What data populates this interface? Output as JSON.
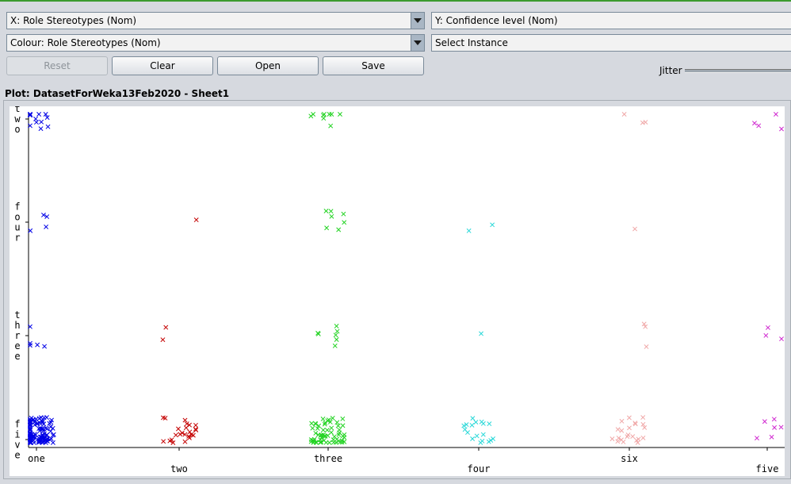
{
  "controls": {
    "x_axis_select": "X: Role Stereotypes (Nom)",
    "y_axis_select": "Y: Confidence level (Nom)",
    "colour_select": "Colour: Role Stereotypes (Nom)",
    "instance_select": "Select Instance",
    "reset_label": "Reset",
    "clear_label": "Clear",
    "open_label": "Open",
    "save_label": "Save",
    "jitter_label": "Jitter"
  },
  "plot": {
    "title": "Plot: DatasetForWeka13Feb2020 - Sheet1"
  },
  "chart_data": {
    "type": "scatter",
    "xlabel": "",
    "ylabel": "",
    "x_categories": [
      "one",
      "two",
      "three",
      "four",
      "six",
      "five"
    ],
    "y_categories": [
      "five",
      "three",
      "four",
      "two"
    ],
    "series": [
      {
        "name": "one",
        "color": "#0000e6",
        "counts": {
          "five": 120,
          "three": 5,
          "four": 4,
          "two": 14
        }
      },
      {
        "name": "two",
        "color": "#c40000",
        "counts": {
          "five": 24,
          "three": 2,
          "four": 1,
          "two": 0
        }
      },
      {
        "name": "three",
        "color": "#22d322",
        "counts": {
          "five": 60,
          "three": 7,
          "four": 7,
          "two": 9
        }
      },
      {
        "name": "four",
        "color": "#28d8d8",
        "counts": {
          "five": 18,
          "three": 1,
          "four": 2,
          "two": 0
        }
      },
      {
        "name": "six",
        "color": "#f0a8a8",
        "counts": {
          "five": 22,
          "three": 3,
          "four": 1,
          "two": 3
        }
      },
      {
        "name": "five",
        "color": "#d02ad0",
        "counts": {
          "five": 6,
          "three": 3,
          "four": 0,
          "two": 4
        }
      }
    ],
    "marker": "x",
    "grid": false,
    "legend": "none"
  }
}
